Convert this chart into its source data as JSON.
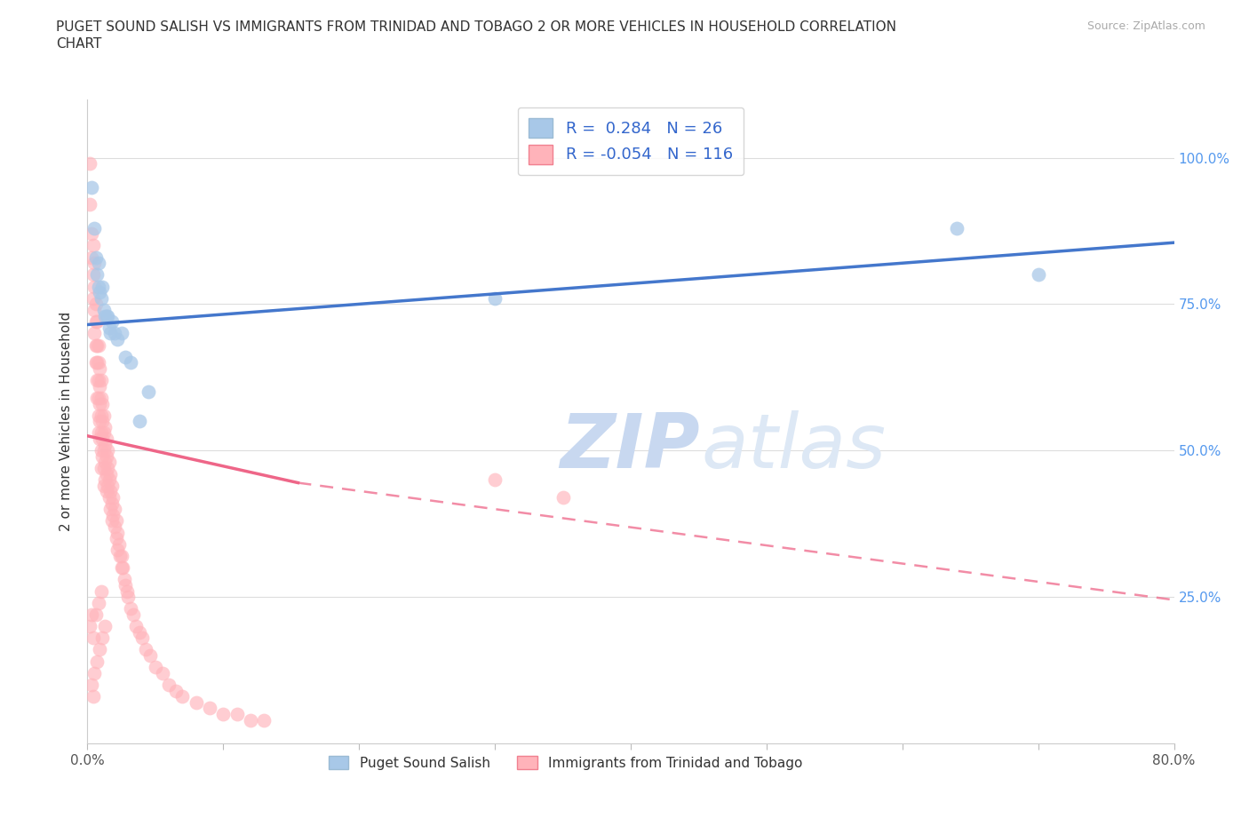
{
  "title_line1": "PUGET SOUND SALISH VS IMMIGRANTS FROM TRINIDAD AND TOBAGO 2 OR MORE VEHICLES IN HOUSEHOLD CORRELATION",
  "title_line2": "CHART",
  "source": "Source: ZipAtlas.com",
  "ylabel": "2 or more Vehicles in Household",
  "xlim": [
    0.0,
    0.8
  ],
  "ylim": [
    0.0,
    1.1
  ],
  "x_ticks": [
    0.0,
    0.1,
    0.2,
    0.3,
    0.4,
    0.5,
    0.6,
    0.7,
    0.8
  ],
  "x_tick_labels": [
    "0.0%",
    "",
    "",
    "",
    "",
    "",
    "",
    "",
    "80.0%"
  ],
  "y_ticks": [
    0.0,
    0.25,
    0.5,
    0.75,
    1.0
  ],
  "y_tick_labels_right": [
    "",
    "25.0%",
    "50.0%",
    "75.0%",
    "100.0%"
  ],
  "blue_color": "#a8c8e8",
  "pink_color": "#ffb3ba",
  "line_blue": "#4477cc",
  "line_pink": "#ee6688",
  "R_blue": 0.284,
  "N_blue": 26,
  "R_pink": -0.054,
  "N_pink": 116,
  "watermark_zip": "ZIP",
  "watermark_atlas": "atlas",
  "blue_line_x0": 0.0,
  "blue_line_y0": 0.715,
  "blue_line_x1": 0.8,
  "blue_line_y1": 0.855,
  "pink_line_x0": 0.0,
  "pink_line_y0": 0.525,
  "pink_line_solid_x1": 0.155,
  "pink_line_solid_y1": 0.445,
  "pink_line_x1": 0.8,
  "pink_line_y1": 0.245,
  "blue_scatter_x": [
    0.003,
    0.005,
    0.006,
    0.007,
    0.008,
    0.008,
    0.009,
    0.01,
    0.011,
    0.012,
    0.013,
    0.014,
    0.015,
    0.016,
    0.017,
    0.018,
    0.02,
    0.022,
    0.025,
    0.028,
    0.032,
    0.038,
    0.045,
    0.3,
    0.64,
    0.7
  ],
  "blue_scatter_y": [
    0.95,
    0.88,
    0.83,
    0.8,
    0.82,
    0.78,
    0.77,
    0.76,
    0.78,
    0.74,
    0.73,
    0.73,
    0.73,
    0.71,
    0.7,
    0.72,
    0.7,
    0.69,
    0.7,
    0.66,
    0.65,
    0.55,
    0.6,
    0.76,
    0.88,
    0.8
  ],
  "pink_scatter_x": [
    0.002,
    0.002,
    0.003,
    0.003,
    0.004,
    0.004,
    0.004,
    0.005,
    0.005,
    0.005,
    0.005,
    0.006,
    0.006,
    0.006,
    0.006,
    0.007,
    0.007,
    0.007,
    0.007,
    0.007,
    0.008,
    0.008,
    0.008,
    0.008,
    0.008,
    0.008,
    0.009,
    0.009,
    0.009,
    0.009,
    0.009,
    0.01,
    0.01,
    0.01,
    0.01,
    0.01,
    0.01,
    0.011,
    0.011,
    0.011,
    0.011,
    0.012,
    0.012,
    0.012,
    0.012,
    0.012,
    0.013,
    0.013,
    0.013,
    0.013,
    0.014,
    0.014,
    0.014,
    0.014,
    0.015,
    0.015,
    0.015,
    0.016,
    0.016,
    0.016,
    0.017,
    0.017,
    0.017,
    0.018,
    0.018,
    0.018,
    0.019,
    0.019,
    0.02,
    0.02,
    0.021,
    0.021,
    0.022,
    0.022,
    0.023,
    0.024,
    0.025,
    0.025,
    0.026,
    0.027,
    0.028,
    0.029,
    0.03,
    0.032,
    0.034,
    0.036,
    0.038,
    0.04,
    0.043,
    0.046,
    0.05,
    0.055,
    0.06,
    0.065,
    0.07,
    0.08,
    0.09,
    0.1,
    0.11,
    0.12,
    0.13,
    0.003,
    0.005,
    0.007,
    0.009,
    0.011,
    0.013,
    0.006,
    0.008,
    0.01,
    0.004,
    0.3,
    0.35,
    0.002,
    0.003,
    0.004
  ],
  "pink_scatter_y": [
    0.99,
    0.92,
    0.87,
    0.83,
    0.85,
    0.8,
    0.76,
    0.82,
    0.78,
    0.74,
    0.7,
    0.75,
    0.72,
    0.68,
    0.65,
    0.72,
    0.68,
    0.65,
    0.62,
    0.59,
    0.68,
    0.65,
    0.62,
    0.59,
    0.56,
    0.53,
    0.64,
    0.61,
    0.58,
    0.55,
    0.52,
    0.62,
    0.59,
    0.56,
    0.53,
    0.5,
    0.47,
    0.58,
    0.55,
    0.52,
    0.49,
    0.56,
    0.53,
    0.5,
    0.47,
    0.44,
    0.54,
    0.51,
    0.48,
    0.45,
    0.52,
    0.49,
    0.46,
    0.43,
    0.5,
    0.47,
    0.44,
    0.48,
    0.45,
    0.42,
    0.46,
    0.43,
    0.4,
    0.44,
    0.41,
    0.38,
    0.42,
    0.39,
    0.4,
    0.37,
    0.38,
    0.35,
    0.36,
    0.33,
    0.34,
    0.32,
    0.32,
    0.3,
    0.3,
    0.28,
    0.27,
    0.26,
    0.25,
    0.23,
    0.22,
    0.2,
    0.19,
    0.18,
    0.16,
    0.15,
    0.13,
    0.12,
    0.1,
    0.09,
    0.08,
    0.07,
    0.06,
    0.05,
    0.05,
    0.04,
    0.04,
    0.1,
    0.12,
    0.14,
    0.16,
    0.18,
    0.2,
    0.22,
    0.24,
    0.26,
    0.08,
    0.45,
    0.42,
    0.2,
    0.22,
    0.18
  ]
}
